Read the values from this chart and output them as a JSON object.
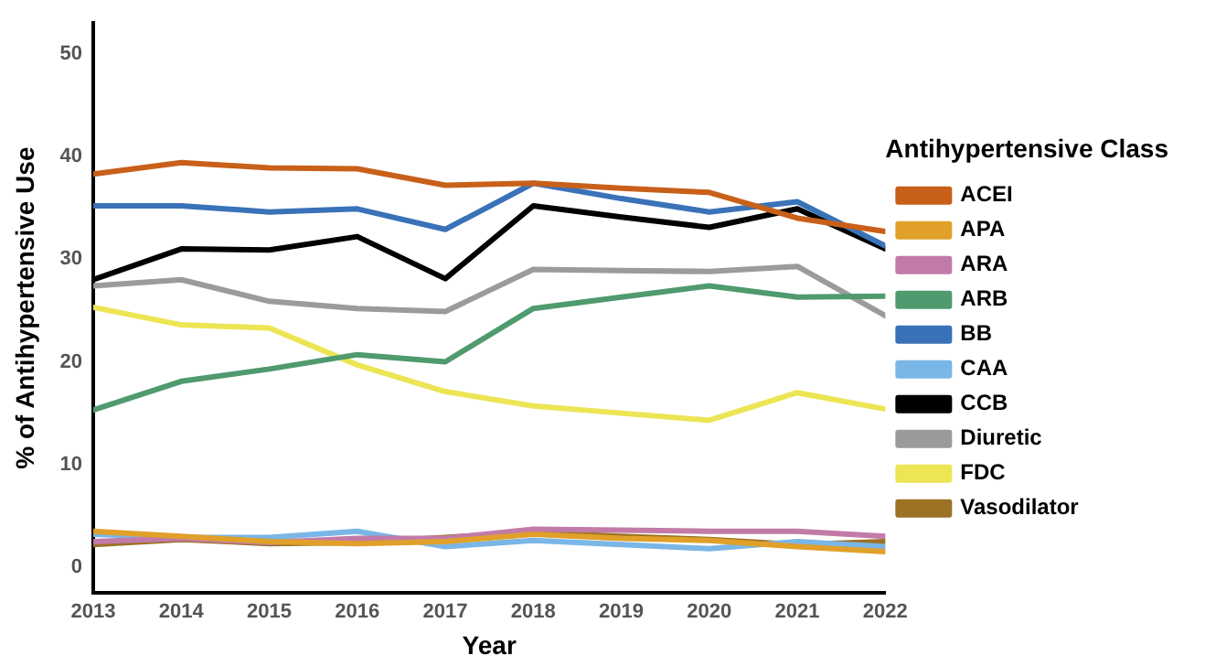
{
  "chart_data": {
    "type": "line",
    "xlabel": "Year",
    "ylabel": "% of Antihypertensive Use",
    "legend_title": "Antihypertensive Class",
    "legend": "right",
    "grid": false,
    "marker": "none",
    "line_style": "solid",
    "x": [
      2013,
      2014,
      2015,
      2016,
      2017,
      2018,
      2019,
      2020,
      2021,
      2022
    ],
    "xlim": [
      2013,
      2022
    ],
    "xticks": [
      2013,
      2014,
      2015,
      2016,
      2017,
      2018,
      2019,
      2020,
      2021,
      2022
    ],
    "ylim": [
      -2.5,
      53
    ],
    "yticks": [
      0,
      10,
      20,
      30,
      40,
      50
    ],
    "series": [
      {
        "name": "ACEI",
        "color": "#c8601a",
        "values": [
          38.3,
          39.4,
          38.9,
          38.8,
          37.2,
          37.4,
          36.9,
          36.5,
          34.0,
          32.7
        ]
      },
      {
        "name": "APA",
        "color": "#e0a02a",
        "values": [
          3.5,
          3.0,
          2.5,
          2.3,
          2.5,
          3.2,
          2.8,
          2.6,
          2.0,
          1.5
        ]
      },
      {
        "name": "ARA",
        "color": "#c27ba8",
        "values": [
          2.5,
          2.8,
          2.4,
          2.8,
          2.8,
          3.7,
          3.6,
          3.5,
          3.5,
          3.0
        ]
      },
      {
        "name": "ARB",
        "color": "#4f9a6e",
        "values": [
          15.3,
          18.1,
          19.3,
          20.7,
          20.0,
          25.2,
          26.3,
          27.4,
          26.3,
          26.4
        ]
      },
      {
        "name": "BB",
        "color": "#3a72b8",
        "values": [
          35.2,
          35.2,
          34.6,
          34.9,
          32.9,
          37.4,
          35.9,
          34.6,
          35.6,
          31.3
        ]
      },
      {
        "name": "CAA",
        "color": "#7ab6e6",
        "values": [
          3.2,
          2.9,
          2.9,
          3.5,
          2.0,
          2.6,
          2.2,
          1.8,
          2.5,
          2.0
        ]
      },
      {
        "name": "CCB",
        "color": "#000000",
        "values": [
          28.0,
          31.0,
          30.9,
          32.2,
          28.1,
          35.2,
          34.1,
          33.1,
          34.9,
          31.0
        ]
      },
      {
        "name": "Diuretic",
        "color": "#9b9b9b",
        "values": [
          27.4,
          28.0,
          25.9,
          25.2,
          24.9,
          29.0,
          28.9,
          28.8,
          29.3,
          24.5
        ]
      },
      {
        "name": "FDC",
        "color": "#ece554",
        "values": [
          25.3,
          23.6,
          23.3,
          19.7,
          17.1,
          15.7,
          15.0,
          14.3,
          17.0,
          15.4
        ]
      },
      {
        "name": "Vasodilator",
        "color": "#9c7224",
        "values": [
          2.2,
          2.7,
          2.3,
          2.4,
          2.9,
          3.4,
          3.0,
          2.7,
          2.2,
          2.5
        ]
      }
    ]
  }
}
